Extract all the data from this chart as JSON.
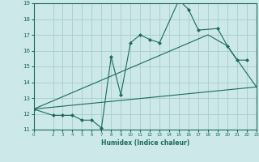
{
  "xlabel": "Humidex (Indice chaleur)",
  "xlim": [
    0,
    23
  ],
  "ylim": [
    11,
    19
  ],
  "xticks": [
    0,
    2,
    3,
    4,
    5,
    6,
    7,
    8,
    9,
    10,
    11,
    12,
    13,
    14,
    15,
    16,
    17,
    18,
    19,
    20,
    21,
    22,
    23
  ],
  "yticks": [
    11,
    12,
    13,
    14,
    15,
    16,
    17,
    18,
    19
  ],
  "bg_color": "#cce8e8",
  "grid_color": "#aacccc",
  "line_color": "#1a6b5a",
  "line1_x": [
    0,
    2,
    3,
    4,
    5,
    6,
    7,
    8,
    9,
    10,
    11,
    12,
    13,
    15,
    16,
    17,
    19,
    20,
    21,
    22
  ],
  "line1_y": [
    12.3,
    11.9,
    11.9,
    11.9,
    11.6,
    11.6,
    11.1,
    15.6,
    13.2,
    16.5,
    17.0,
    16.7,
    16.5,
    19.2,
    18.6,
    17.3,
    17.4,
    16.3,
    15.4,
    15.4
  ],
  "line2_x": [
    0,
    18,
    20,
    23
  ],
  "line2_y": [
    12.3,
    17.0,
    16.3,
    13.7
  ],
  "line3_x": [
    0,
    23
  ],
  "line3_y": [
    12.3,
    13.7
  ]
}
